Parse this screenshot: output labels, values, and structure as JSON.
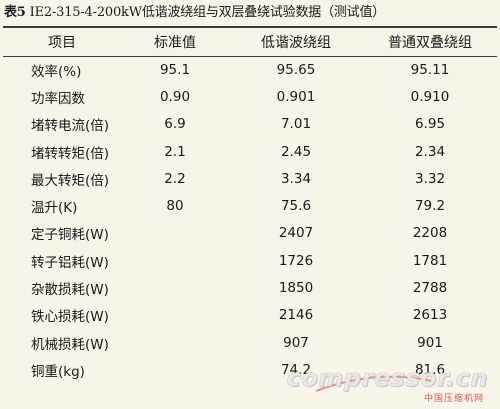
{
  "caption": {
    "number": "表5",
    "title": "IE2-315-4-200kW低谐波绕组与双层叠绕试验数据（测试值）"
  },
  "table": {
    "headers": [
      "项目",
      "标准值",
      "低谐波绕组",
      "普通双叠绕组"
    ],
    "rows": [
      [
        "效率(%)",
        "95.1",
        "95.65",
        "95.11"
      ],
      [
        "功率因数",
        "0.90",
        "0.901",
        "0.910"
      ],
      [
        "堵转电流(倍)",
        "6.9",
        "7.01",
        "6.95"
      ],
      [
        "堵转转矩(倍)",
        "2.1",
        "2.45",
        "2.34"
      ],
      [
        "最大转矩(倍)",
        "2.2",
        "3.34",
        "3.32"
      ],
      [
        "温升(K)",
        "80",
        "75.6",
        "79.2"
      ],
      [
        "定子铜耗(W)",
        "",
        "2407",
        "2208"
      ],
      [
        "转子铝耗(W)",
        "",
        "1726",
        "1781"
      ],
      [
        "杂散损耗(W)",
        "",
        "1850",
        "2788"
      ],
      [
        "铁心损耗(W)",
        "",
        "2146",
        "2613"
      ],
      [
        "机械损耗(W)",
        "",
        "907",
        "901"
      ],
      [
        "铜重(kg)",
        "",
        "74.2",
        "81.6"
      ]
    ]
  },
  "watermark": {
    "text": "compressor.cn",
    "subtext": "中国压缩机网"
  },
  "colors": {
    "background": "#f7f4e9",
    "text": "#1a1a1a",
    "rule": "#3c3c3c",
    "watermark_accent": "#d73c3c"
  }
}
